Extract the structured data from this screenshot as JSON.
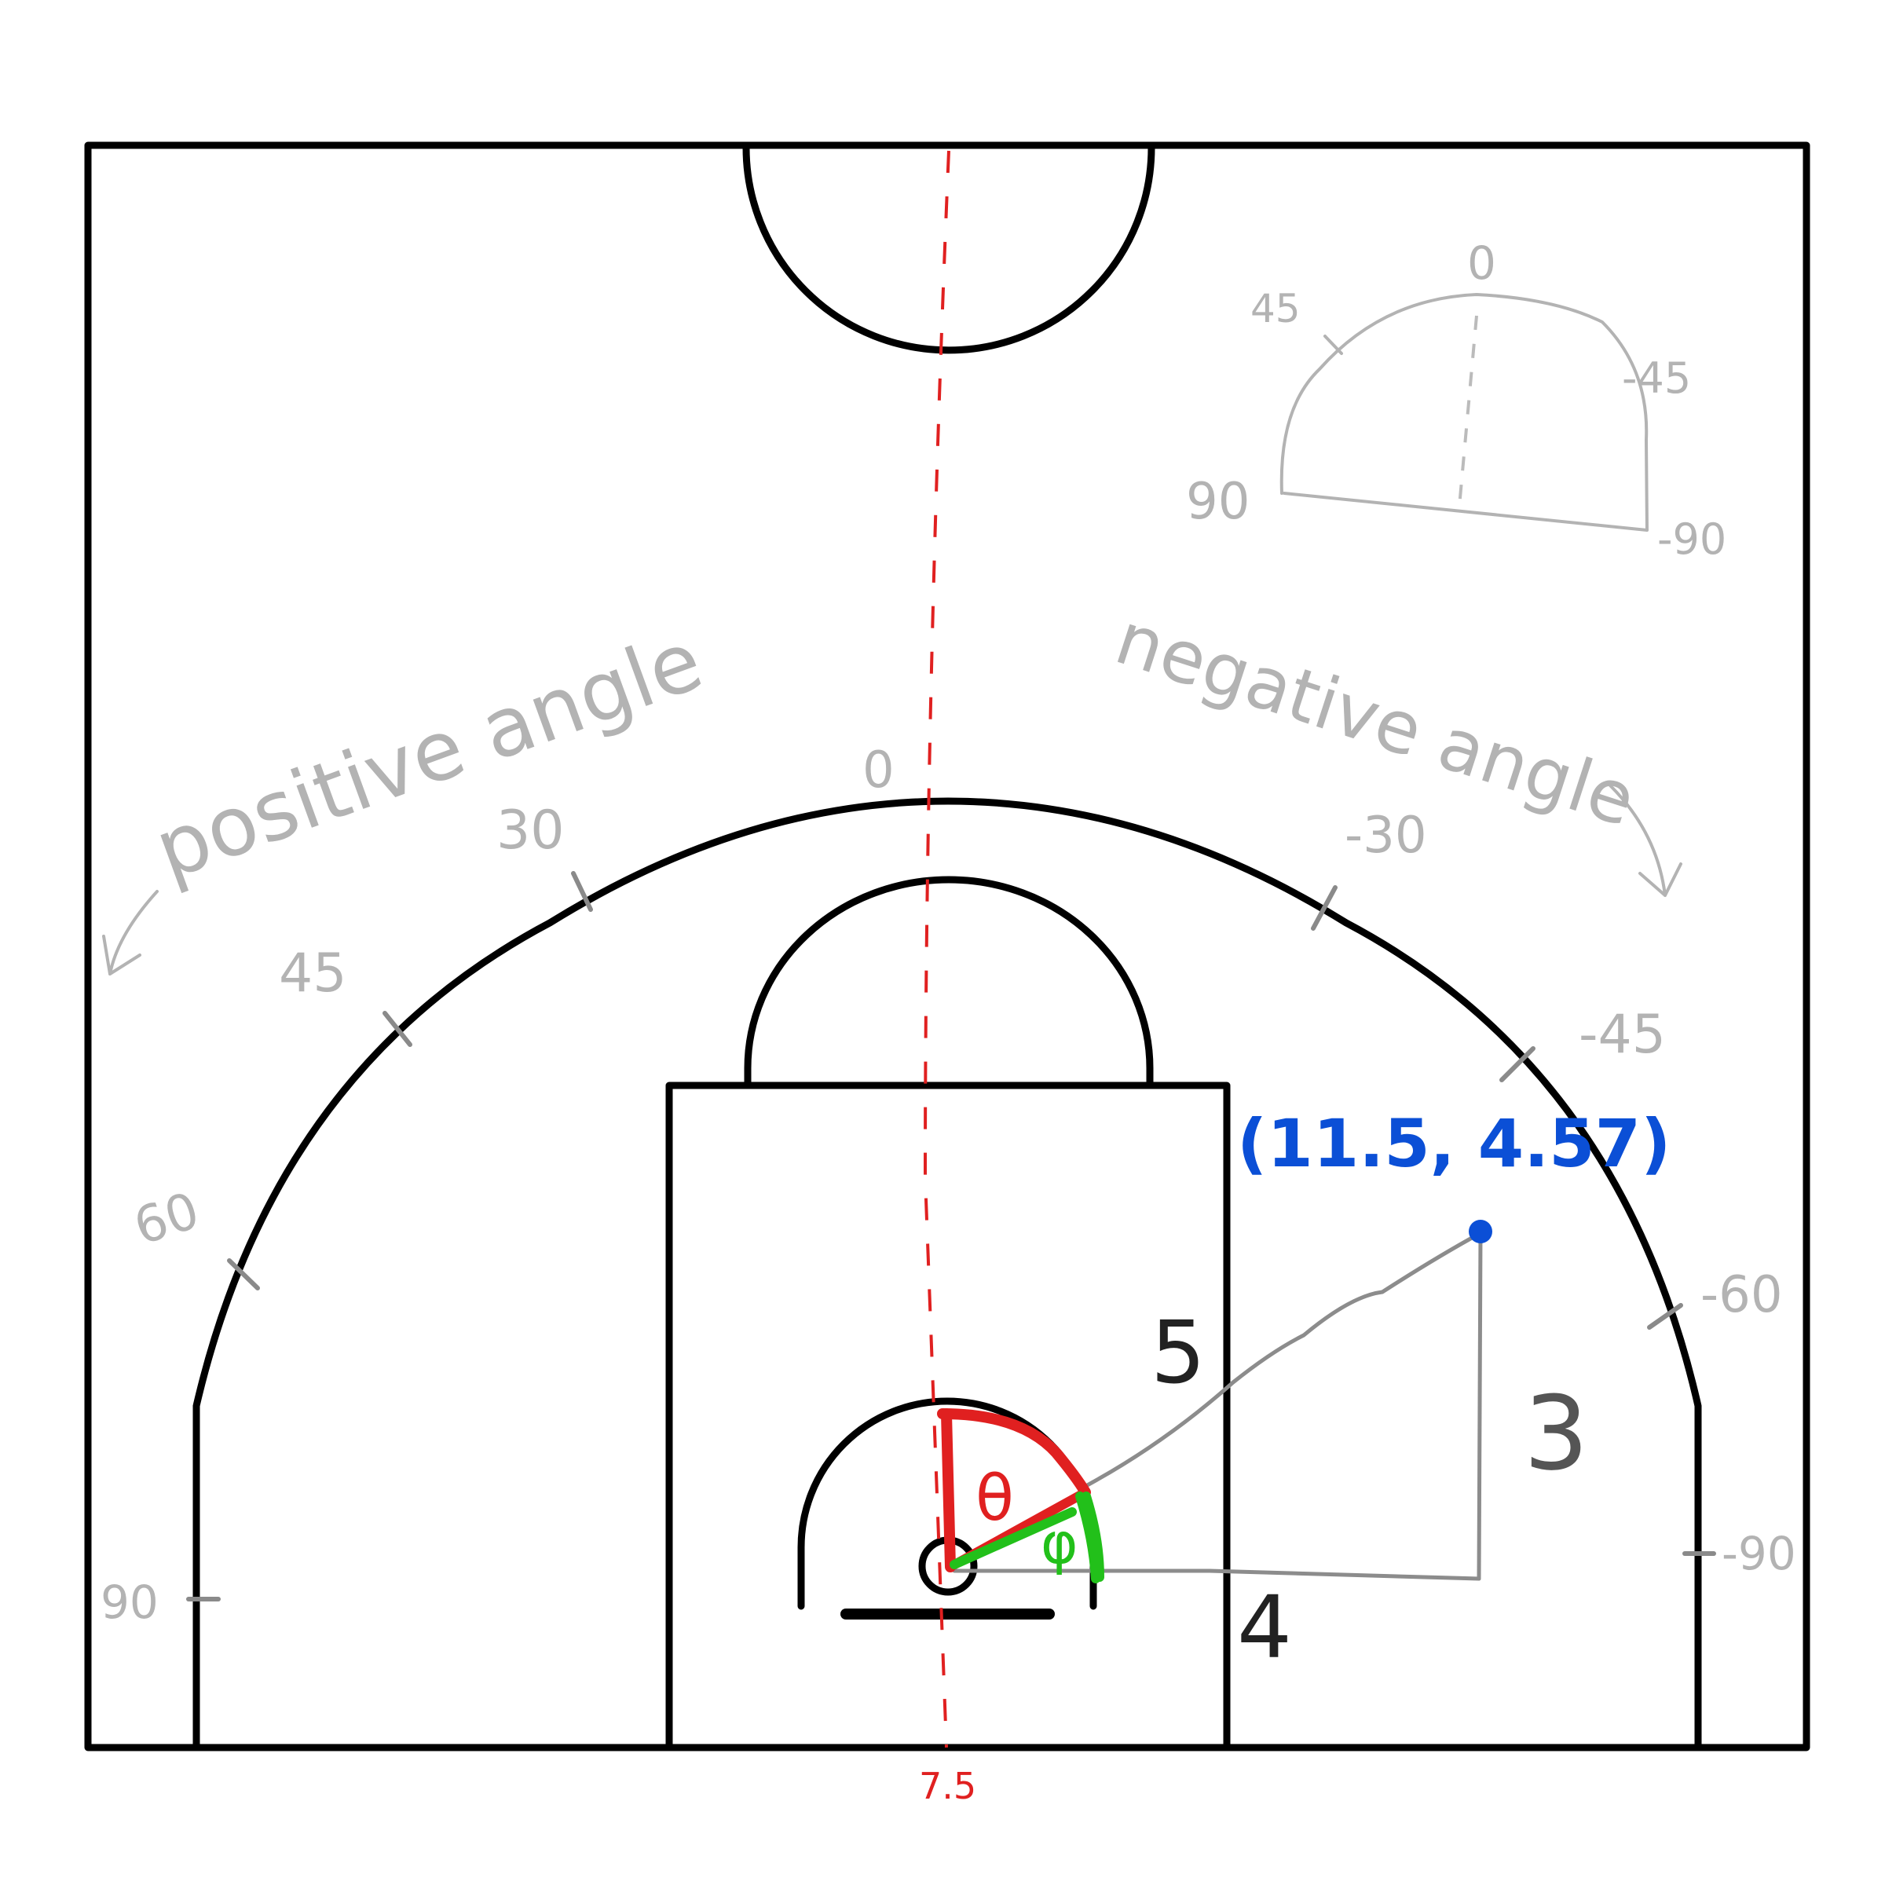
{
  "annotations": {
    "centerline_value": "7.5",
    "point_label": "(11.5, 4.57)",
    "hyp_label": "5",
    "rise_label": "3",
    "run_label": "4",
    "theta_label": "θ",
    "phi_label": "φ",
    "positive_angle": "positive angle",
    "negative_angle": "negative angle"
  },
  "arc_angles": {
    "zero": "0",
    "pos_30": "30",
    "pos_45": "45",
    "pos_60": "60",
    "pos_90": "90",
    "neg_30": "-30",
    "neg_45": "-45",
    "neg_60": "-60",
    "neg_90": "-90"
  },
  "inset_angles": {
    "zero": "0",
    "pos_45": "45",
    "pos_90": "90",
    "neg_45": "-45",
    "neg_90": "-90"
  },
  "colors": {
    "court_lines": "#000000",
    "centerline": "#e02020",
    "theta": "#e02020",
    "phi": "#22c01a",
    "point": "#0b4fd6",
    "guides": "#b3b3b3"
  }
}
